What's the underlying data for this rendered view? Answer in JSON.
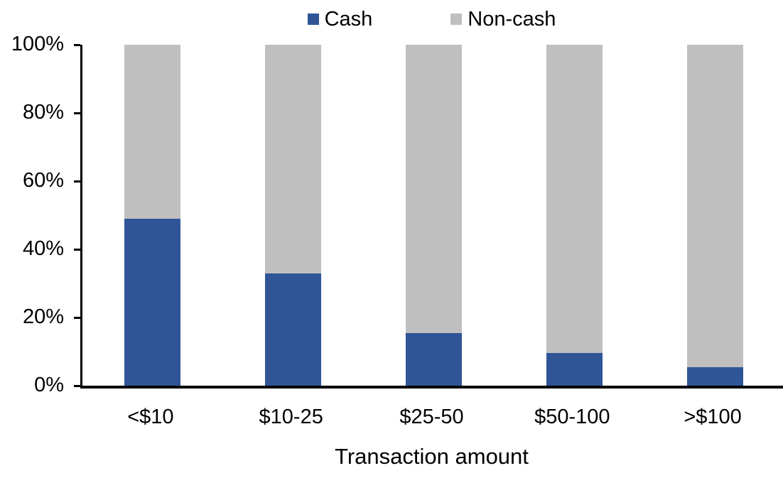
{
  "chart_data": {
    "type": "bar",
    "stacked": true,
    "percent_stacked": true,
    "title": "",
    "xlabel": "Transaction amount",
    "ylabel": "",
    "ylim": [
      0,
      100
    ],
    "y_ticks": [
      "0%",
      "20%",
      "40%",
      "60%",
      "80%",
      "100%"
    ],
    "grid": false,
    "legend_position": "top-center",
    "categories": [
      "<$10",
      "$10-25",
      "$25-50",
      "$50-100",
      ">$100"
    ],
    "series": [
      {
        "name": "Cash",
        "color": "#2F5597",
        "values": [
          49,
          33,
          15.5,
          9.5,
          5.5
        ]
      },
      {
        "name": "Non-cash",
        "color": "#BFBFBF",
        "values": [
          51,
          67,
          84.5,
          90.5,
          94.5
        ]
      }
    ],
    "colors": {
      "axis": "#000000",
      "text": "#000000",
      "background": "#FFFFFF"
    }
  }
}
